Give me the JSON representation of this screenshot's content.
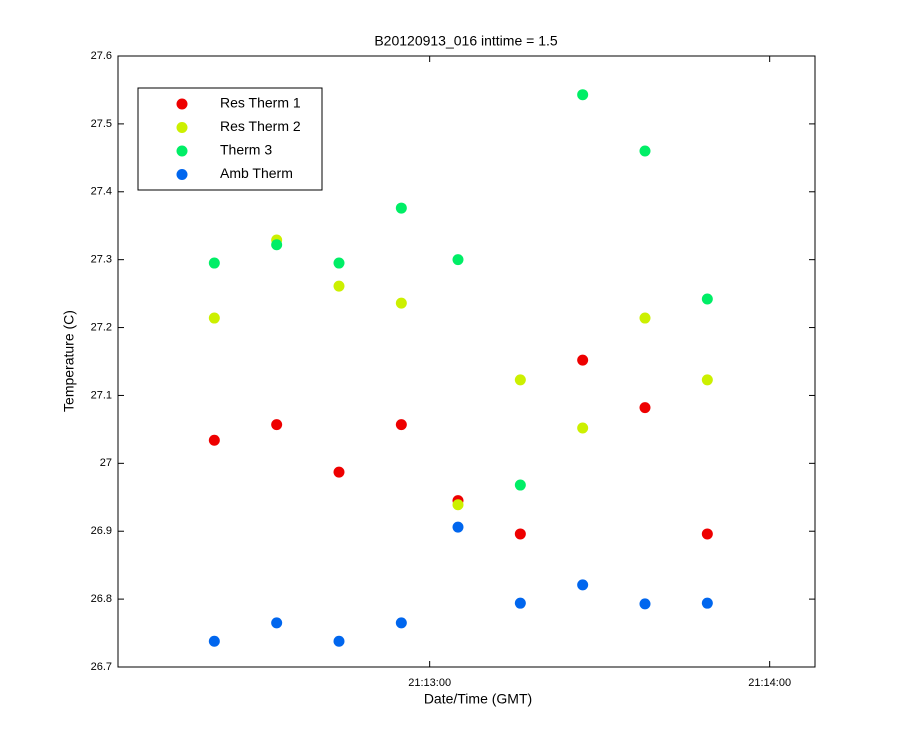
{
  "chart_data": {
    "type": "scatter",
    "title": "B20120913_016 inttime = 1.5",
    "x_label": "Date/Time (GMT)",
    "y_label": "Temperature (C)",
    "x": [
      "21:12:22",
      "21:12:33",
      "21:12:44",
      "21:12:55",
      "21:13:05",
      "21:13:16",
      "21:13:27",
      "21:13:38",
      "21:13:49"
    ],
    "series": [
      {
        "name": "Res Therm 1",
        "color": "#ee0000",
        "values": [
          27.034,
          27.057,
          26.987,
          27.057,
          26.945,
          26.896,
          27.152,
          27.082,
          26.896
        ]
      },
      {
        "name": "Res Therm 2",
        "color": "#ccf000",
        "values": [
          27.214,
          27.329,
          27.261,
          27.236,
          26.939,
          27.123,
          27.052,
          27.214,
          27.123
        ]
      },
      {
        "name": "Therm 3",
        "color": "#00ee66",
        "values": [
          27.295,
          27.322,
          27.295,
          27.376,
          27.3,
          26.968,
          27.543,
          27.46,
          27.242
        ]
      },
      {
        "name": "Amb Therm",
        "color": "#0066ee",
        "values": [
          26.738,
          26.765,
          26.738,
          26.765,
          26.906,
          26.794,
          26.821,
          26.793,
          26.794
        ]
      }
    ],
    "xlim": [
      "21:12:05",
      "21:14:08"
    ],
    "xticks": [
      "21:13:00",
      "21:14:00"
    ],
    "ylim": [
      26.7,
      27.6
    ],
    "yticks": [
      26.7,
      26.8,
      26.9,
      27,
      27.1,
      27.2,
      27.3,
      27.4,
      27.5,
      27.6
    ],
    "grid": false,
    "legend": "upper left"
  }
}
